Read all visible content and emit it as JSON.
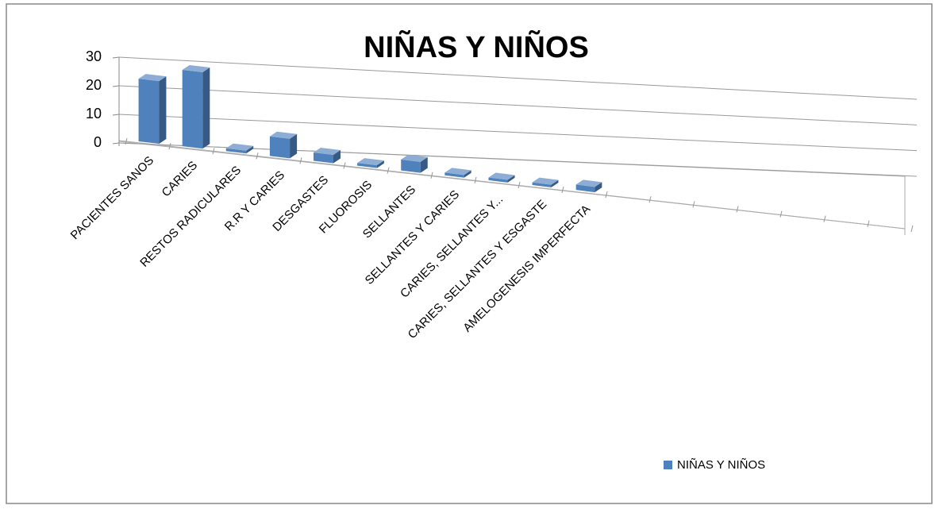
{
  "chart_data": {
    "type": "bar3d",
    "title": "NIÑAS Y NIÑOS",
    "categories": [
      "PACIENTES SANOS",
      "CARIES",
      "RESTOS RADICULARES",
      "R.R Y CARIES",
      "DESGASTES",
      "FLUOROSIS",
      "SELLANTES",
      "SELLANTES Y CARIES",
      "CARIES, SELLANTES Y...",
      "CARIES, SELLANTES Y ESGASTE",
      "AMELOGENESIS IMPERFECTA",
      null,
      null,
      null,
      null,
      null,
      null,
      null
    ],
    "series": [
      {
        "name": "NIÑAS Y NIÑOS",
        "color": "#4f81bd",
        "values": [
          22,
          27,
          1,
          7,
          3,
          1,
          4,
          1,
          1,
          1,
          2,
          null,
          null,
          null,
          null,
          null,
          null,
          null
        ]
      }
    ],
    "ylim": [
      0,
      30
    ],
    "yticks": [
      0,
      10,
      20,
      30
    ],
    "grid": true,
    "legend": "bottom-right"
  }
}
